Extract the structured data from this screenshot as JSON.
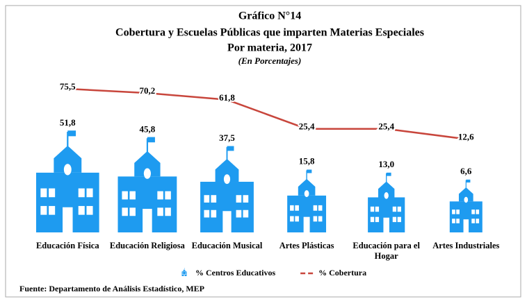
{
  "chart_data": {
    "type": "bar",
    "title": "Gráfico N°14",
    "subtitle": "Cobertura y Escuelas Públicas que imparten Materias Especiales",
    "subtitle2": "Por materia, 2017",
    "units_note": "(En Porcentajes)",
    "categories": [
      "Educación Física",
      "Educación Religiosa",
      "Educación Musical",
      "Artes Plásticas",
      "Educación para el Hogar",
      "Artes Industriales"
    ],
    "series": [
      {
        "name": "% Centros Educativos",
        "type": "bar",
        "color": "#1e9bf0",
        "values": [
          51.8,
          45.8,
          37.5,
          15.8,
          13.0,
          6.6
        ],
        "value_labels": [
          "51,8",
          "45,8",
          "37,5",
          "15,8",
          "13,0",
          "6,6"
        ]
      },
      {
        "name": "% Cobertura",
        "type": "line",
        "color": "#c8463c",
        "values": [
          75.5,
          70.2,
          61.8,
          25.4,
          25.4,
          12.6
        ],
        "value_labels": [
          "75,5",
          "70,2",
          "61,8",
          "25,4",
          "25,4",
          "12,6"
        ]
      }
    ],
    "legend": "bottom",
    "source": "Fuente: Departamento de Análisis Estadístico, MEP"
  }
}
